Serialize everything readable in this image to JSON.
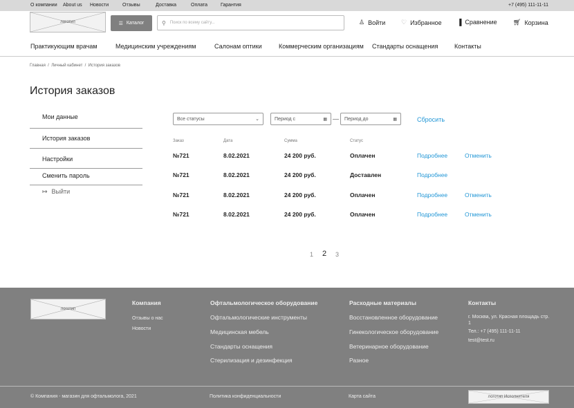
{
  "topbar": {
    "links": [
      "О компании",
      "About us",
      "Новости",
      "Отзывы",
      "Доставка",
      "Оплата",
      "Гарантия"
    ],
    "phone": "+7 (495) 111-11-11"
  },
  "header": {
    "logo": "логотип",
    "catalog": "Каталог",
    "search_placeholder": "Поиск по всему сайту...",
    "login": "Войти",
    "favorites": "Избранное",
    "compare": "Сравнение",
    "cart": "Корзина"
  },
  "nav": [
    "Практикующим врачам",
    "Медицинским учреждениям",
    "Салонам оптики",
    "Коммерческим организациям",
    "Стандарты оснащения",
    "Контакты"
  ],
  "breadcrumb": [
    "Главная",
    "Личный кабинет",
    "История заказов"
  ],
  "page_title": "История заказов",
  "sidebar": {
    "items": [
      "Мои данные",
      "История заказов",
      "Настройки",
      "Сменить пароль"
    ],
    "logout": "Выйти"
  },
  "filters": {
    "status": "Все статусы",
    "from_placeholder": "Период с",
    "to_placeholder": "Период до",
    "reset": "Сбросить"
  },
  "table": {
    "headers": [
      "Заказ",
      "Дата",
      "Сумма",
      "Статус"
    ],
    "rows": [
      {
        "order": "№721",
        "date": "8.02.2021",
        "sum": "24 200 руб.",
        "status": "Оплачен",
        "details": "Подробнее",
        "cancel": "Отменить"
      },
      {
        "order": "№721",
        "date": "8.02.2021",
        "sum": "24 200 руб.",
        "status": "Доставлен",
        "details": "Подробнее"
      },
      {
        "order": "№721",
        "date": "8.02.2021",
        "sum": "24 200 руб.",
        "status": "Оплачен",
        "details": "Подробнее",
        "cancel": "Отменить"
      },
      {
        "order": "№721",
        "date": "8.02.2021",
        "sum": "24 200 руб.",
        "status": "Оплачен",
        "details": "Подробнее",
        "cancel": "Отменить"
      }
    ]
  },
  "pagination": {
    "pages": [
      "1",
      "2",
      "3"
    ],
    "current": "2"
  },
  "footer": {
    "logo": "логотип",
    "company_title": "Компания",
    "company_links": [
      "Отзывы о нас",
      "Новости"
    ],
    "col1": [
      "Офтальмологическое оборудование",
      "Офтальмологические инструменты",
      "Медицинская мебель",
      "Стандарты оснащения",
      "Стерилизация и дезинфекция"
    ],
    "col2": [
      "Расходные материалы",
      "Восстановленное оборудование",
      "Гинекологическое оборудование",
      "Ветеринарное оборудование",
      "Разное"
    ],
    "contacts_title": "Контакты",
    "address": "г. Москва, ул. Красная площадь стр. 1",
    "phone": "Тел.: +7 (495)  111-11-11",
    "email": "test@test.ru",
    "copyright": "© Компания - магазин для офтальмолога, 2021",
    "privacy": "Политика конфиденциальности",
    "sitemap": "Карта сайта",
    "dev_logo": "логотип Исполнителя"
  },
  "colors": {
    "link": "#2196d6",
    "footer_bg": "#808080",
    "topbar_bg": "#d9d9d9"
  }
}
